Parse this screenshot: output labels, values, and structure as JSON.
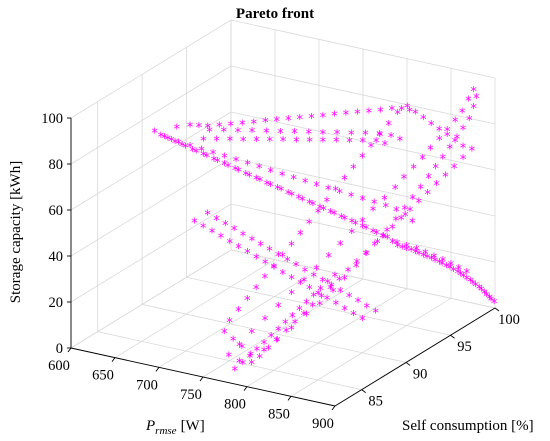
{
  "chart_data": {
    "type": "scatter3d",
    "title": "Pareto front",
    "xlabel": "P",
    "xlabel_sub": "rmse",
    "xlabel_unit": "[W]",
    "ylabel": "Self consumption [%]",
    "zlabel": "Storage capacity [kWh]",
    "xlim": [
      600,
      900
    ],
    "ylim": [
      82,
      100
    ],
    "zlim": [
      0,
      100
    ],
    "xticks": [
      "600",
      "650",
      "700",
      "750",
      "800",
      "850",
      "900"
    ],
    "yticks": [
      "85",
      "90",
      "95",
      "100"
    ],
    "zticks": [
      "0",
      "20",
      "40",
      "60",
      "80",
      "100"
    ],
    "grid": true,
    "marker": "*",
    "marker_color": "#ff00ff",
    "points": [
      [
        771,
        83.5,
        1
      ],
      [
        775,
        84.0,
        3
      ],
      [
        778,
        84.5,
        5
      ],
      [
        781,
        85.0,
        7
      ],
      [
        784,
        85.5,
        9
      ],
      [
        787,
        86.0,
        11
      ],
      [
        790,
        86.5,
        13
      ],
      [
        793,
        87.0,
        15
      ],
      [
        796,
        87.5,
        17
      ],
      [
        799,
        88.0,
        19
      ],
      [
        802,
        88.5,
        21
      ],
      [
        805,
        89.0,
        23
      ],
      [
        808,
        89.5,
        25
      ],
      [
        811,
        90.0,
        27
      ],
      [
        814,
        90.5,
        29
      ],
      [
        773,
        83.8,
        4
      ],
      [
        779,
        84.6,
        2
      ],
      [
        785,
        85.4,
        6
      ],
      [
        791,
        86.2,
        9
      ],
      [
        797,
        87.3,
        12
      ],
      [
        803,
        88.4,
        16
      ],
      [
        809,
        89.3,
        19
      ],
      [
        815,
        90.2,
        23
      ],
      [
        820,
        91.0,
        27
      ],
      [
        825,
        91.8,
        31
      ],
      [
        830,
        92.5,
        35
      ],
      [
        835,
        93.2,
        39
      ],
      [
        840,
        93.8,
        43
      ],
      [
        845,
        94.3,
        47
      ],
      [
        850,
        94.8,
        51
      ],
      [
        855,
        95.2,
        55
      ],
      [
        860,
        95.6,
        59
      ],
      [
        865,
        96.0,
        63
      ],
      [
        870,
        96.3,
        67
      ],
      [
        875,
        96.6,
        71
      ],
      [
        880,
        96.9,
        75
      ],
      [
        885,
        97.2,
        79
      ],
      [
        890,
        97.4,
        83
      ],
      [
        895,
        97.6,
        87
      ],
      [
        898,
        97.8,
        92
      ],
      [
        899,
        98.0,
        96
      ],
      [
        897,
        97.9,
        99
      ],
      [
        893,
        97.7,
        95
      ],
      [
        888,
        97.5,
        90
      ],
      [
        882,
        97.3,
        86
      ],
      [
        876,
        97.0,
        82
      ],
      [
        869,
        96.8,
        78
      ],
      [
        862,
        96.5,
        74
      ],
      [
        856,
        96.2,
        70
      ],
      [
        849,
        95.9,
        66
      ],
      [
        842,
        95.5,
        62
      ],
      [
        836,
        95.1,
        58
      ],
      [
        829,
        94.6,
        54
      ],
      [
        822,
        94.0,
        50
      ],
      [
        816,
        93.4,
        46
      ],
      [
        810,
        92.8,
        42
      ],
      [
        804,
        92.1,
        38
      ],
      [
        798,
        91.4,
        34
      ],
      [
        792,
        90.6,
        30
      ],
      [
        786,
        89.8,
        26
      ],
      [
        780,
        89.0,
        22
      ],
      [
        774,
        88.1,
        18
      ],
      [
        768,
        87.2,
        14
      ],
      [
        762,
        86.3,
        10
      ],
      [
        757,
        85.4,
        6
      ],
      [
        753,
        84.6,
        3
      ],
      [
        830,
        96.0,
        30
      ],
      [
        835,
        96.5,
        28
      ],
      [
        840,
        97.0,
        26
      ],
      [
        845,
        97.4,
        24
      ],
      [
        850,
        97.8,
        22
      ],
      [
        855,
        98.2,
        20
      ],
      [
        860,
        98.5,
        18
      ],
      [
        865,
        98.8,
        16
      ],
      [
        870,
        99.1,
        14
      ],
      [
        875,
        99.3,
        12
      ],
      [
        880,
        99.5,
        10
      ],
      [
        885,
        99.7,
        8
      ],
      [
        890,
        99.8,
        6
      ],
      [
        895,
        99.9,
        4
      ],
      [
        899,
        100.0,
        2
      ],
      [
        882,
        99.6,
        9
      ],
      [
        887,
        99.75,
        7
      ],
      [
        892,
        99.85,
        5
      ],
      [
        896,
        99.95,
        3
      ],
      [
        878,
        99.4,
        11
      ],
      [
        872,
        99.2,
        13
      ],
      [
        868,
        99.0,
        15
      ],
      [
        862,
        98.7,
        17
      ],
      [
        857,
        98.3,
        19
      ],
      [
        852,
        98.0,
        21
      ],
      [
        847,
        97.6,
        23
      ],
      [
        842,
        97.2,
        25
      ],
      [
        837,
        96.8,
        27
      ],
      [
        832,
        96.3,
        29
      ],
      [
        826,
        95.8,
        32
      ],
      [
        820,
        95.3,
        35
      ],
      [
        814,
        94.8,
        38
      ],
      [
        808,
        94.2,
        41
      ],
      [
        802,
        93.6,
        44
      ],
      [
        796,
        93.0,
        47
      ],
      [
        790,
        92.4,
        50
      ],
      [
        784,
        91.8,
        53
      ],
      [
        778,
        91.2,
        56
      ],
      [
        772,
        90.6,
        59
      ],
      [
        766,
        90.0,
        62
      ],
      [
        760,
        89.4,
        65
      ],
      [
        754,
        88.8,
        68
      ],
      [
        748,
        88.2,
        71
      ],
      [
        742,
        87.6,
        74
      ],
      [
        736,
        87.0,
        77
      ],
      [
        730,
        86.4,
        80
      ],
      [
        724,
        85.8,
        83
      ],
      [
        718,
        85.2,
        86
      ],
      [
        712,
        84.6,
        89
      ],
      [
        706,
        84.0,
        92
      ],
      [
        700,
        83.4,
        95
      ],
      [
        694,
        82.8,
        98
      ],
      [
        690,
        82.5,
        100
      ],
      [
        696,
        83.0,
        97
      ],
      [
        702,
        83.6,
        94
      ],
      [
        708,
        84.2,
        91
      ],
      [
        714,
        84.8,
        88
      ],
      [
        720,
        85.4,
        85
      ],
      [
        726,
        86.0,
        82
      ],
      [
        732,
        86.6,
        79
      ],
      [
        738,
        87.2,
        76
      ],
      [
        744,
        87.8,
        73
      ],
      [
        750,
        88.4,
        70
      ],
      [
        756,
        89.0,
        67
      ],
      [
        762,
        89.6,
        64
      ],
      [
        768,
        90.2,
        61
      ],
      [
        774,
        90.8,
        58
      ],
      [
        780,
        91.4,
        55
      ],
      [
        786,
        92.0,
        52
      ],
      [
        792,
        92.6,
        49
      ],
      [
        798,
        93.2,
        46
      ],
      [
        804,
        93.8,
        43
      ],
      [
        810,
        94.4,
        40
      ],
      [
        816,
        95.0,
        37
      ],
      [
        822,
        95.6,
        34
      ],
      [
        828,
        96.1,
        31
      ],
      [
        834,
        96.6,
        29
      ],
      [
        840,
        97.1,
        27
      ],
      [
        846,
        97.5,
        25
      ],
      [
        852,
        97.9,
        23
      ],
      [
        858,
        98.3,
        21
      ],
      [
        864,
        98.6,
        19
      ],
      [
        870,
        98.9,
        17
      ],
      [
        876,
        99.2,
        15
      ],
      [
        710,
        86.0,
        90
      ],
      [
        715,
        87.0,
        88
      ],
      [
        720,
        88.0,
        86
      ],
      [
        725,
        89.0,
        84
      ],
      [
        730,
        90.0,
        82
      ],
      [
        735,
        91.0,
        80
      ],
      [
        740,
        92.0,
        78
      ],
      [
        745,
        93.0,
        76
      ],
      [
        750,
        94.0,
        74
      ],
      [
        755,
        95.0,
        72
      ],
      [
        760,
        96.0,
        70
      ],
      [
        765,
        97.0,
        68
      ],
      [
        770,
        98.0,
        66
      ],
      [
        775,
        99.0,
        64
      ],
      [
        780,
        99.5,
        62
      ],
      [
        712,
        86.5,
        93
      ],
      [
        718,
        87.5,
        91
      ],
      [
        724,
        88.5,
        89
      ],
      [
        730,
        89.5,
        87
      ],
      [
        736,
        90.5,
        85
      ],
      [
        742,
        91.5,
        83
      ],
      [
        748,
        92.5,
        81
      ],
      [
        754,
        93.5,
        79
      ],
      [
        760,
        94.5,
        77
      ],
      [
        766,
        95.5,
        75
      ],
      [
        772,
        96.5,
        73
      ],
      [
        778,
        97.5,
        71
      ],
      [
        784,
        98.5,
        69
      ],
      [
        790,
        99.2,
        67
      ],
      [
        796,
        99.6,
        65
      ],
      [
        700,
        84.0,
        99
      ],
      [
        705,
        85.0,
        98
      ],
      [
        710,
        85.5,
        97
      ],
      [
        715,
        86.0,
        96
      ],
      [
        720,
        86.8,
        95
      ],
      [
        725,
        87.6,
        94
      ],
      [
        730,
        88.4,
        93
      ],
      [
        735,
        89.2,
        92
      ],
      [
        740,
        90.0,
        91
      ],
      [
        745,
        90.8,
        90
      ],
      [
        750,
        91.6,
        89
      ],
      [
        755,
        92.4,
        88
      ],
      [
        760,
        93.2,
        87
      ],
      [
        765,
        94.0,
        86
      ],
      [
        770,
        94.8,
        85
      ],
      [
        775,
        95.6,
        84
      ],
      [
        780,
        96.4,
        83
      ],
      [
        785,
        97.2,
        82
      ],
      [
        790,
        98.0,
        81
      ],
      [
        795,
        98.8,
        80
      ],
      [
        800,
        99.4,
        79
      ],
      [
        805,
        99.8,
        78
      ],
      [
        698,
        83.2,
        96
      ],
      [
        703,
        83.9,
        93
      ],
      [
        708,
        84.7,
        90
      ],
      [
        713,
        85.5,
        87
      ],
      [
        718,
        86.3,
        84
      ],
      [
        723,
        87.1,
        81
      ],
      [
        728,
        87.9,
        78
      ],
      [
        733,
        88.7,
        75
      ],
      [
        738,
        89.5,
        72
      ],
      [
        743,
        90.3,
        69
      ],
      [
        748,
        91.1,
        66
      ],
      [
        753,
        91.9,
        63
      ],
      [
        758,
        92.7,
        60
      ],
      [
        763,
        93.5,
        57
      ],
      [
        768,
        94.3,
        54
      ],
      [
        773,
        95.1,
        51
      ],
      [
        778,
        95.9,
        48
      ],
      [
        783,
        96.7,
        45
      ],
      [
        788,
        97.5,
        42
      ],
      [
        793,
        98.3,
        39
      ],
      [
        798,
        99.0,
        36
      ],
      [
        803,
        99.5,
        33
      ],
      [
        808,
        99.8,
        30
      ],
      [
        760,
        84.0,
        20
      ],
      [
        765,
        84.5,
        24
      ],
      [
        770,
        85.0,
        28
      ],
      [
        775,
        85.5,
        32
      ],
      [
        780,
        86.0,
        36
      ],
      [
        785,
        86.5,
        40
      ],
      [
        790,
        87.0,
        44
      ],
      [
        795,
        87.5,
        48
      ],
      [
        800,
        88.0,
        52
      ],
      [
        805,
        88.5,
        56
      ],
      [
        810,
        89.0,
        60
      ],
      [
        815,
        89.5,
        64
      ],
      [
        820,
        90.0,
        68
      ],
      [
        825,
        90.5,
        72
      ],
      [
        830,
        91.0,
        76
      ],
      [
        835,
        91.5,
        80
      ],
      [
        840,
        92.0,
        84
      ],
      [
        845,
        92.5,
        88
      ],
      [
        850,
        93.0,
        92
      ],
      [
        855,
        93.5,
        96
      ],
      [
        758,
        83.6,
        16
      ],
      [
        763,
        84.1,
        12
      ],
      [
        768,
        84.6,
        8
      ],
      [
        773,
        85.1,
        4
      ],
      [
        778,
        85.6,
        2
      ],
      [
        783,
        86.1,
        5
      ],
      [
        788,
        86.6,
        8
      ],
      [
        793,
        87.1,
        11
      ],
      [
        798,
        87.6,
        14
      ],
      [
        803,
        88.1,
        17
      ],
      [
        808,
        88.6,
        20
      ],
      [
        813,
        89.1,
        23
      ],
      [
        818,
        89.6,
        26
      ],
      [
        823,
        90.1,
        29
      ],
      [
        828,
        90.6,
        32
      ],
      [
        833,
        91.1,
        35
      ],
      [
        838,
        91.6,
        38
      ],
      [
        843,
        92.1,
        41
      ],
      [
        848,
        92.6,
        44
      ],
      [
        853,
        93.1,
        47
      ],
      [
        858,
        93.6,
        50
      ],
      [
        863,
        94.1,
        53
      ],
      [
        868,
        94.6,
        56
      ],
      [
        873,
        95.1,
        59
      ],
      [
        878,
        95.6,
        62
      ],
      [
        883,
        96.1,
        65
      ],
      [
        888,
        96.6,
        68
      ],
      [
        893,
        97.1,
        71
      ],
      [
        898,
        97.6,
        74
      ],
      [
        896,
        96.8,
        77
      ],
      [
        891,
        96.4,
        80
      ],
      [
        886,
        96.0,
        83
      ],
      [
        881,
        95.6,
        86
      ],
      [
        876,
        95.2,
        89
      ],
      [
        871,
        94.8,
        92
      ],
      [
        866,
        94.4,
        95
      ],
      [
        861,
        94.0,
        98
      ],
      [
        720,
        84.0,
        60
      ],
      [
        725,
        84.5,
        57
      ],
      [
        730,
        85.0,
        54
      ],
      [
        735,
        85.5,
        51
      ],
      [
        740,
        86.0,
        48
      ],
      [
        745,
        86.5,
        45
      ],
      [
        750,
        87.0,
        42
      ],
      [
        755,
        87.5,
        39
      ],
      [
        760,
        88.0,
        36
      ],
      [
        765,
        88.5,
        33
      ],
      [
        770,
        89.0,
        30
      ],
      [
        775,
        89.5,
        27
      ],
      [
        780,
        90.0,
        24
      ],
      [
        785,
        90.5,
        21
      ],
      [
        790,
        91.0,
        18
      ],
      [
        795,
        91.5,
        15
      ],
      [
        800,
        92.0,
        12
      ],
      [
        805,
        92.5,
        9
      ],
      [
        810,
        93.0,
        6
      ],
      [
        815,
        93.5,
        3
      ],
      [
        727,
        84.8,
        62
      ],
      [
        732,
        85.3,
        59
      ],
      [
        737,
        85.8,
        56
      ],
      [
        742,
        86.3,
        53
      ],
      [
        747,
        86.8,
        50
      ],
      [
        752,
        87.3,
        47
      ],
      [
        757,
        87.8,
        44
      ],
      [
        762,
        88.3,
        41
      ],
      [
        767,
        88.8,
        38
      ],
      [
        772,
        89.3,
        35
      ],
      [
        777,
        89.8,
        32
      ],
      [
        782,
        90.3,
        29
      ],
      [
        787,
        90.8,
        26
      ],
      [
        792,
        91.3,
        23
      ],
      [
        797,
        91.8,
        20
      ],
      [
        802,
        92.3,
        17
      ],
      [
        807,
        92.8,
        14
      ],
      [
        812,
        93.3,
        11
      ],
      [
        817,
        93.8,
        8
      ],
      [
        822,
        94.3,
        5
      ]
    ]
  }
}
